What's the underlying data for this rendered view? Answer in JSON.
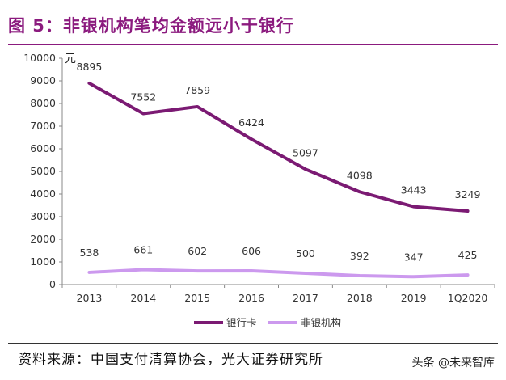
{
  "header": {
    "title": "图 5：非银机构笔均金额远小于银行"
  },
  "chart_data": {
    "type": "line",
    "title": "",
    "xlabel": "",
    "ylabel": "元",
    "ylim": [
      0,
      10000
    ],
    "yticks": [
      0,
      1000,
      2000,
      3000,
      4000,
      5000,
      6000,
      7000,
      8000,
      9000,
      10000
    ],
    "categories": [
      "2013",
      "2014",
      "2015",
      "2016",
      "2017",
      "2018",
      "2019",
      "1Q2020"
    ],
    "series": [
      {
        "name": "银行卡",
        "values": [
          8895,
          7552,
          7859,
          6424,
          5097,
          4098,
          3443,
          3249
        ],
        "color": "#7b1a73"
      },
      {
        "name": "非银机构",
        "values": [
          538,
          661,
          602,
          606,
          500,
          392,
          347,
          425
        ],
        "color": "#cc99ee"
      }
    ],
    "grid": false,
    "legend_position": "bottom"
  },
  "footer": {
    "source": "资料来源：中国支付清算协会，光大证券研究所",
    "watermark": "头条 @未来智库"
  }
}
